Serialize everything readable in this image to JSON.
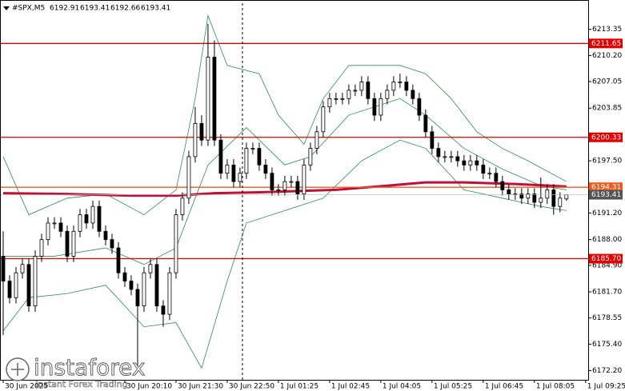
{
  "chart_data": {
    "type": "candlestick",
    "title": "#SPX,M5",
    "open": [
      6186,
      6183,
      6181,
      6184,
      6185,
      6180,
      6186,
      6188,
      6190,
      6190,
      6189,
      6186,
      6189,
      6191,
      6190,
      6192,
      6189,
      6188,
      6187,
      6184,
      6183,
      6182,
      6180,
      6184,
      6185,
      6180,
      6179,
      6184,
      6191,
      6193,
      6198,
      6202,
      6200,
      6210,
      6200,
      6196,
      6197,
      6195,
      6196,
      6199,
      6199,
      6197,
      6196,
      6194,
      6194,
      6195,
      6195,
      6193.5,
      6197,
      6199,
      6201,
      6204,
      6205,
      6205,
      6205,
      6206,
      6206,
      6207,
      6205,
      6203,
      6205,
      6206,
      6207,
      6207,
      6206,
      6205,
      6203,
      6201,
      6199,
      6198,
      6198,
      6198,
      6197.5,
      6197,
      6197.5,
      6197,
      6196,
      6196,
      6195,
      6194,
      6193.5,
      6193.5,
      6193,
      6193.5,
      6192.5,
      6193,
      6194,
      6192,
      6192.91
    ],
    "high": [
      6189,
      6183.7,
      6184.7,
      6185.7,
      6185.7,
      6186.7,
      6188.7,
      6190.7,
      6190.7,
      6190.7,
      6189.7,
      6189.7,
      6191.7,
      6191.7,
      6192.7,
      6192.7,
      6189.7,
      6188.7,
      6187.7,
      6184.7,
      6183.7,
      6182.7,
      6184.7,
      6185.7,
      6185.7,
      6180.7,
      6184.7,
      6191.7,
      6193.7,
      6198.7,
      6204,
      6203,
      6214,
      6212,
      6200.7,
      6197.7,
      6197.7,
      6196.7,
      6199.7,
      6199.7,
      6199.7,
      6197.7,
      6196.7,
      6194.7,
      6195.7,
      6195.7,
      6195.7,
      6197.7,
      6199.7,
      6201.7,
      6204.7,
      6205.7,
      6205.7,
      6205.7,
      6206.7,
      6206.7,
      6207.7,
      6207.7,
      6205.7,
      6205.7,
      6206.7,
      6207.7,
      6208,
      6207.7,
      6206.7,
      6205.7,
      6203.7,
      6201.7,
      6199.7,
      6198.7,
      6198.7,
      6198.7,
      6198.2,
      6198.2,
      6198.2,
      6197.7,
      6196.7,
      6196.7,
      6195.7,
      6194.7,
      6194.2,
      6194.2,
      6194.2,
      6194.2,
      6195.5,
      6194.7,
      6194.7,
      6193.7,
      6193.41
    ],
    "low": [
      6176.5,
      6180.3,
      6180.3,
      6183.3,
      6179.3,
      6179.3,
      6185.3,
      6187.3,
      6189.3,
      6188.3,
      6185.3,
      6185.3,
      6188.3,
      6189.3,
      6189.3,
      6188.3,
      6187.3,
      6186.3,
      6183.3,
      6182.3,
      6181.3,
      6172,
      6179.3,
      6183.3,
      6179.3,
      6177.5,
      6178.3,
      6183.3,
      6190.3,
      6192.3,
      6197.3,
      6199.3,
      6199.3,
      6199.3,
      6195.3,
      6195.3,
      6194.3,
      6194.3,
      6195.3,
      6198.3,
      6196.3,
      6195.3,
      6193.3,
      6193.3,
      6193.3,
      6194.3,
      6192.8,
      6192.8,
      6196.3,
      6198.3,
      6200.3,
      6203.3,
      6204.3,
      6204.3,
      6204.3,
      6205.3,
      6205.3,
      6204.3,
      6202.3,
      6202.3,
      6204.3,
      6205.3,
      6206.3,
      6205.3,
      6204.3,
      6202.3,
      6200.3,
      6198.3,
      6197.3,
      6197.3,
      6197.3,
      6196.8,
      6196.3,
      6196.3,
      6196.3,
      6195.3,
      6195.3,
      6194.3,
      6193.3,
      6192.8,
      6192.8,
      6192.3,
      6192.3,
      6191.8,
      6191.8,
      6192.3,
      6191,
      6191.3,
      6192.66
    ],
    "close": [
      6183,
      6181,
      6184,
      6185,
      6180,
      6186,
      6188,
      6190,
      6190,
      6189,
      6186,
      6189,
      6191,
      6190,
      6192,
      6189,
      6188,
      6187,
      6184,
      6183,
      6182,
      6180,
      6184,
      6185,
      6180,
      6179,
      6184,
      6191,
      6193,
      6198,
      6202,
      6200,
      6210,
      6200,
      6196,
      6197,
      6195,
      6196,
      6199,
      6199,
      6197,
      6196,
      6194,
      6194,
      6195,
      6195,
      6193.5,
      6197,
      6199,
      6201,
      6204,
      6205,
      6205,
      6205,
      6206,
      6206,
      6207,
      6205,
      6203,
      6205,
      6206,
      6207,
      6207,
      6206,
      6205,
      6203,
      6201,
      6199,
      6198,
      6198,
      6198,
      6197.5,
      6197,
      6197.5,
      6197,
      6196,
      6196,
      6195,
      6194,
      6193.5,
      6193.5,
      6193,
      6193.5,
      6192.5,
      6193,
      6194,
      6192,
      6193,
      6193.41
    ],
    "color": "#000000",
    "xlim": [
      -0.5,
      91.4
    ],
    "xticks": [
      {
        "value": 0,
        "label": "30 Jun 2025"
      },
      {
        "value": 19,
        "label": "30 Jun 20:10"
      },
      {
        "value": 27,
        "label": "30 Jun 21:30"
      },
      {
        "value": 35,
        "label": "30 Jun 22:50"
      },
      {
        "value": 43,
        "label": "1 Jul 01:25"
      },
      {
        "value": 51,
        "label": "1 Jul 02:45"
      },
      {
        "value": 59,
        "label": "1 Jul 04:05"
      },
      {
        "value": 67,
        "label": "1 Jul 05:25"
      },
      {
        "value": 75,
        "label": "1 Jul 06:45"
      },
      {
        "value": 83,
        "label": "1 Jul 08:05"
      },
      {
        "value": 91,
        "label": "1 Jul 09:25"
      }
    ],
    "ylim": [
      6171.1,
      6216.5
    ],
    "yticks": [
      {
        "value": 6213.35,
        "label": "6213.35"
      },
      {
        "value": 6210.2,
        "label": "6210.20"
      },
      {
        "value": 6207.05,
        "label": "6207.05"
      },
      {
        "value": 6203.85,
        "label": "6203.85"
      },
      {
        "value": 6197.5,
        "label": "6197.50"
      },
      {
        "value": 6191.2,
        "label": "6191.20"
      },
      {
        "value": 6188,
        "label": "6188.00"
      },
      {
        "value": 6184.9,
        "label": "6184.90"
      },
      {
        "value": 6181.7,
        "label": "6181.70"
      },
      {
        "value": 6178.55,
        "label": "6178.55"
      },
      {
        "value": 6175.4,
        "label": "6175.40"
      },
      {
        "value": 6172.2,
        "label": "6172.20"
      }
    ],
    "overlays": [
      {
        "color": "#2e8b57",
        "width": 0.8,
        "x": [
          0,
          4,
          10,
          16,
          22,
          27,
          30,
          32,
          35,
          40,
          43,
          47,
          50,
          54,
          58,
          62,
          66,
          70,
          74,
          78,
          82,
          88
        ],
        "values": [
          6198,
          6191,
          6193,
          6193.5,
          6191,
          6194,
          6205,
          6215,
          6209,
          6208,
          6203,
          6199.5,
          6205,
          6209,
          6209,
          6209,
          6208,
          6205,
          6201,
          6199,
          6197.5,
          6195
        ]
      },
      {
        "color": "#2e8b57",
        "width": 0.8,
        "x": [
          0,
          8,
          16,
          22,
          27,
          32,
          38,
          44,
          48,
          54,
          62,
          66,
          72,
          78,
          84,
          88
        ],
        "values": [
          6186,
          6186,
          6187,
          6185,
          6187,
          6197,
          6201.5,
          6197,
          6198,
          6203,
          6205,
          6203,
          6199,
          6196.5,
          6194.5,
          6194
        ]
      },
      {
        "color": "#2e8b57",
        "width": 0.8,
        "x": [
          0,
          4,
          10,
          16,
          22,
          27,
          31,
          35,
          38,
          44,
          50,
          56,
          62,
          66,
          72,
          78,
          84,
          88
        ],
        "values": [
          6177,
          6181,
          6181.5,
          6182.5,
          6177.5,
          6178,
          6172.5,
          6183,
          6190,
          6191.5,
          6193,
          6197.5,
          6200,
          6199,
          6194,
          6193,
          6192,
          6191.5
        ]
      },
      {
        "color": "#c0103a",
        "width": 3,
        "x": [
          0,
          10,
          20,
          27,
          33,
          40,
          52,
          60,
          66,
          72,
          80,
          88
        ],
        "values": [
          6193.6,
          6193.5,
          6193.3,
          6193.3,
          6193.6,
          6193.7,
          6194,
          6194.5,
          6194.9,
          6194.9,
          6194.7,
          6194.4
        ]
      }
    ],
    "levels": [
      {
        "value": 6211.65,
        "color": "#e00000"
      },
      {
        "value": 6200.33,
        "color": "#e00000"
      },
      {
        "value": 6194.31,
        "color": "#f05a1e"
      },
      {
        "value": {
          "value": 6185.7,
          "label": "6185.70"
        },
        "color": "#e00000"
      }
    ],
    "price_label_color": "#555555",
    "watermark": {
      "brand": "instaforex",
      "tagline": "Instant Forex Trading"
    }
  }
}
